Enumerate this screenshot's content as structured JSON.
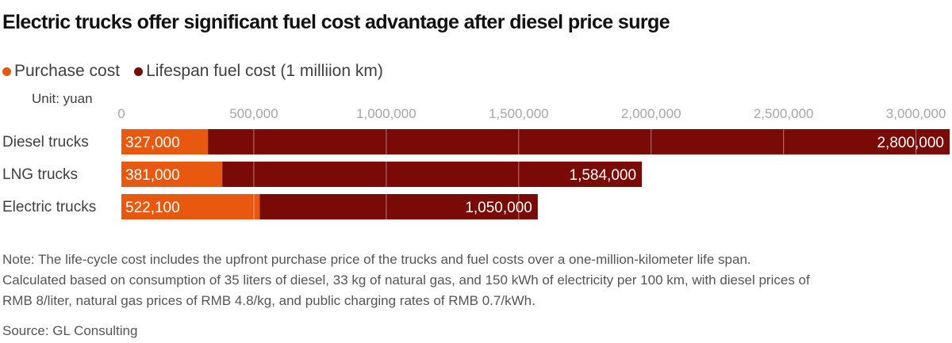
{
  "title": "Electric trucks offer significant fuel cost advantage after diesel price surge",
  "unit": "Unit: yuan",
  "colors": {
    "purchase": "#e8580f",
    "fuel": "#7a0a05",
    "tick_text": "#a6a6a6",
    "label_text": "#404040"
  },
  "chart_data": {
    "type": "bar",
    "orientation": "horizontal",
    "stacked": true,
    "categories": [
      "Diesel trucks",
      "LNG trucks",
      "Electric trucks"
    ],
    "series": [
      {
        "name": "Purchase cost",
        "values": [
          327000,
          381000,
          522100
        ]
      },
      {
        "name": "Lifespan fuel cost (1 milliion km)",
        "values": [
          2800000,
          1584000,
          1050000
        ]
      }
    ],
    "data_labels": [
      [
        "327,000",
        "381,000",
        "522,100"
      ],
      [
        "2,800,000",
        "1,584,000",
        "1,050,000"
      ]
    ],
    "xlim": [
      0,
      3150000
    ],
    "xticks": [
      0,
      500000,
      1000000,
      1500000,
      2000000,
      2500000,
      3000000
    ],
    "xtick_labels": [
      "0",
      "500,000",
      "1,000,000",
      "1,500,000",
      "2,000,000",
      "2,500,000",
      "3,000,000"
    ],
    "xaxis_position": "top",
    "grid": true,
    "legend_position": "top-left"
  },
  "notes": [
    "Note: The life-cycle cost includes the upfront purchase price of the trucks and fuel costs over a one-million-kilometer life span.",
    "Calculated based on consumption of 35 liters of diesel, 33 kg of natural gas, and 150 kWh of electricity per 100 km, with diesel prices of",
    "RMB 8/liter, natural gas prices of RMB 4.8/kg, and public charging rates of RMB 0.7/kWh."
  ],
  "source": "Source: GL Consulting"
}
